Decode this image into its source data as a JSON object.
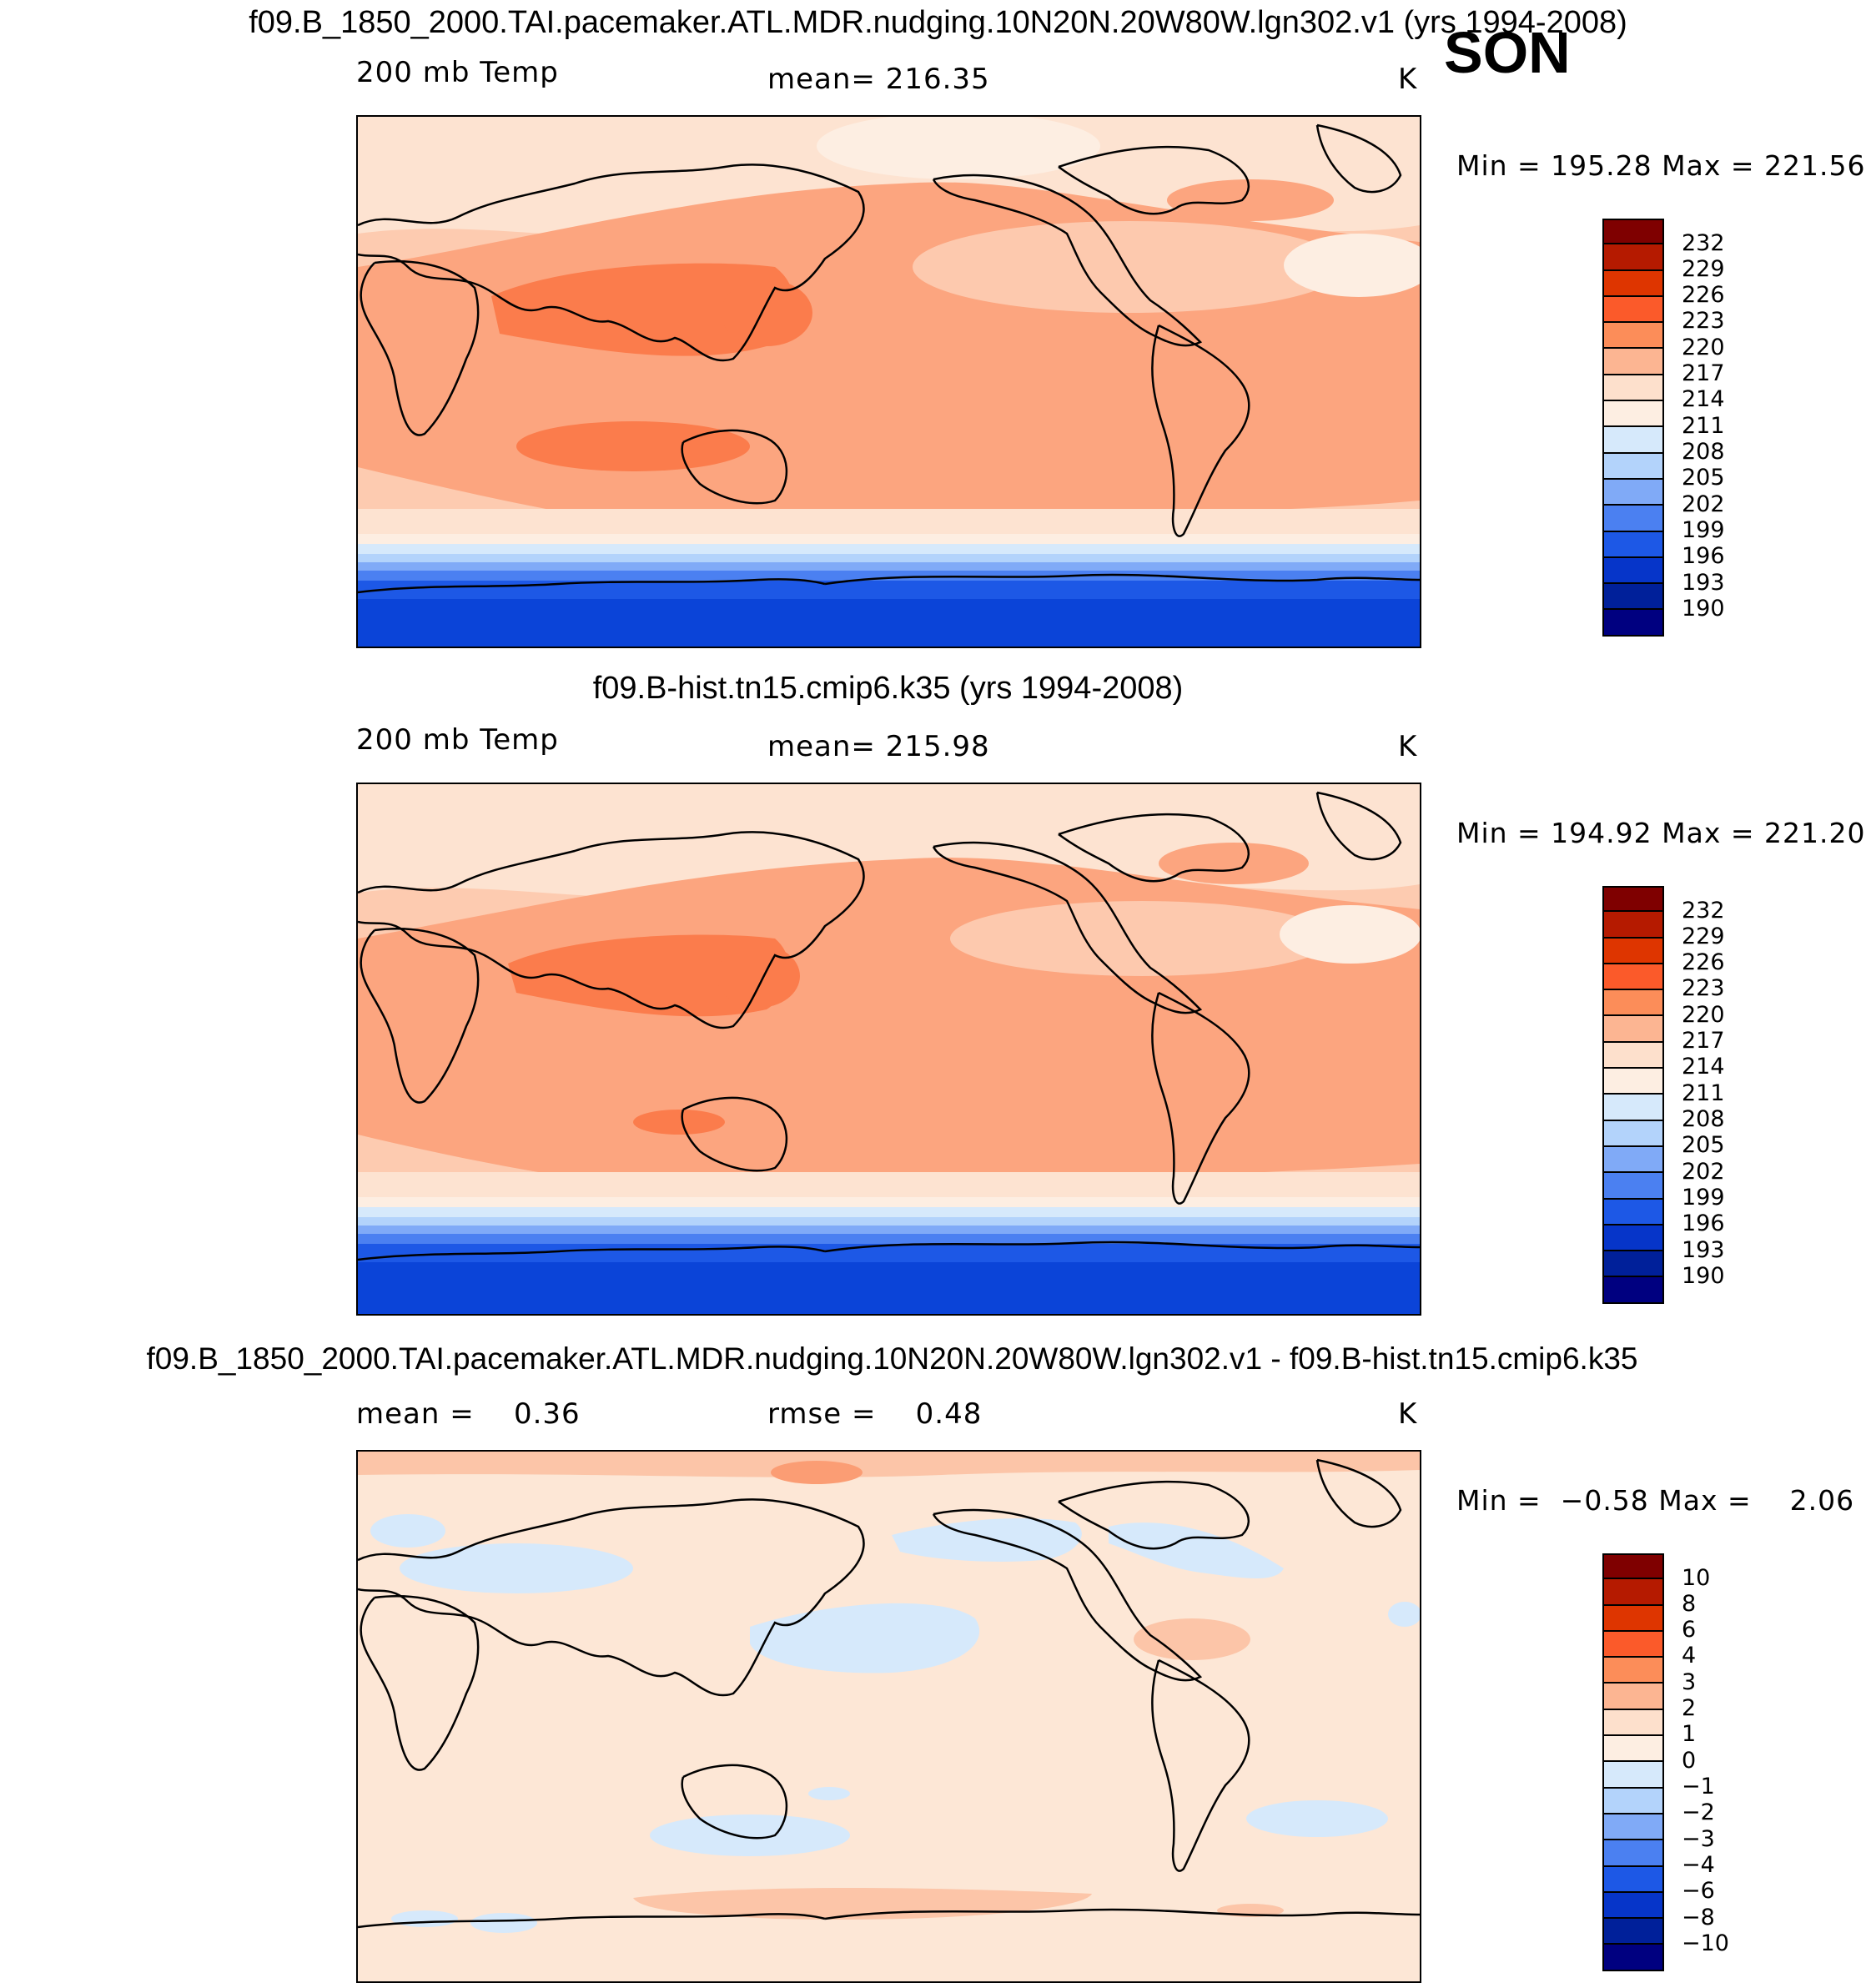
{
  "season": "SON",
  "panels": [
    {
      "title": "f09.B_1850_2000.TAI.pacemaker.ATL.MDR.nudging.10N20N.20W80W.lgn302.v1 (yrs 1994-2008)",
      "left_label": "200 mb Temp",
      "center_label": "mean= 216.35",
      "units": "K",
      "minmax": "Min = 195.28 Max = 221.56",
      "colorbar": [
        "232",
        "229",
        "226",
        "223",
        "220",
        "217",
        "214",
        "211",
        "208",
        "205",
        "202",
        "199",
        "196",
        "193",
        "190"
      ]
    },
    {
      "title": "f09.B-hist.tn15.cmip6.k35 (yrs 1994-2008)",
      "left_label": "200 mb Temp",
      "center_label": "mean= 215.98",
      "units": "K",
      "minmax": "Min = 194.92 Max = 221.20",
      "colorbar": [
        "232",
        "229",
        "226",
        "223",
        "220",
        "217",
        "214",
        "211",
        "208",
        "205",
        "202",
        "199",
        "196",
        "193",
        "190"
      ]
    },
    {
      "title": "f09.B_1850_2000.TAI.pacemaker.ATL.MDR.nudging.10N20N.20W80W.lgn302.v1 - f09.B-hist.tn15.cmip6.k35",
      "left_label": "mean =    0.36",
      "center_label": "rmse =    0.48",
      "units": "K",
      "minmax": "Min =  −0.58 Max =    2.06",
      "colorbar": [
        "10",
        "8",
        "6",
        "4",
        "3",
        "2",
        "1",
        "0",
        "−1",
        "−2",
        "−3",
        "−4",
        "−6",
        "−8",
        "−10"
      ]
    }
  ],
  "colors": {
    "scale": [
      "#7f0000",
      "#b51a00",
      "#de3500",
      "#fb5a2a",
      "#fc8d59",
      "#fcb592",
      "#fde0cc",
      "#fdeee2",
      "#d6e9fb",
      "#b3d3fb",
      "#80aaf7",
      "#4b80f1",
      "#1d58e6",
      "#0635c9",
      "#00209a",
      "#000080"
    ]
  }
}
